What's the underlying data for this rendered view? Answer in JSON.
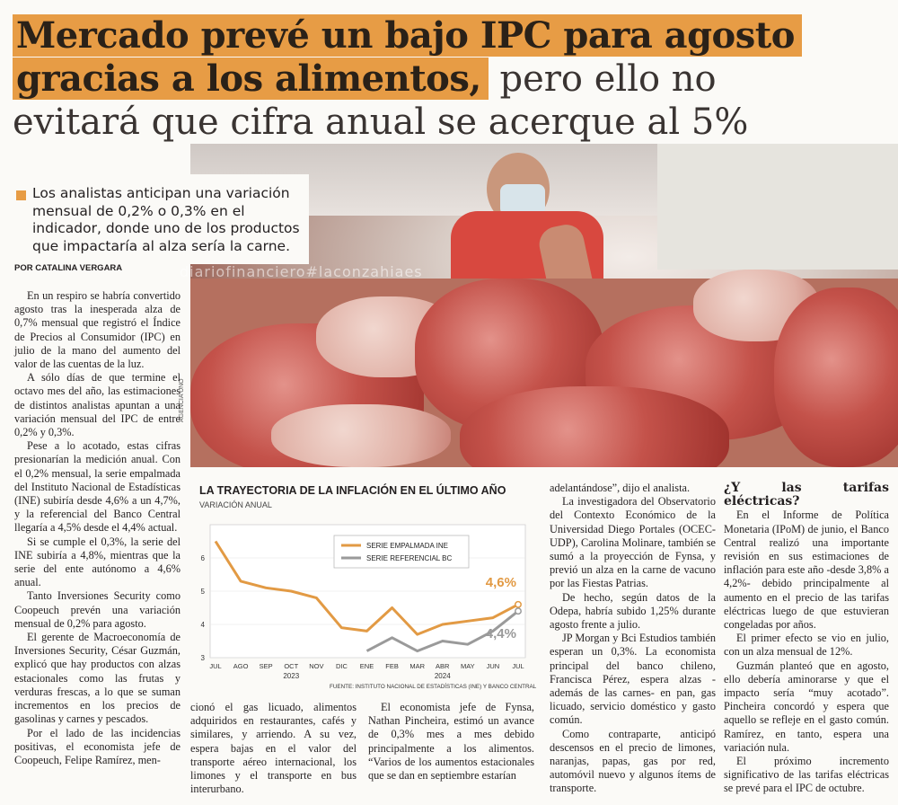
{
  "headline": {
    "line1": "Mercado prevé un bajo IPC para agosto",
    "line2_highlight": "gracias a los alimentos,",
    "line2_rest": " pero ello no",
    "line3": "evitará que cifra anual se acerque al 5%"
  },
  "lead": "Los analistas anticipan una variación mensual de 0,2% o 0,3% en el indicador, donde uno de los productos que impactaría al alza sería la carne.",
  "byline": "POR CATALINA VERGARA",
  "watermark": "diariofinanciero#laconzahiaes",
  "photo_credit": "AGENCIA UNO",
  "col1": [
    "En un respiro se habría convertido agosto tras la inesperada alza de 0,7% mensual que registró el Índice de Precios al Consumidor (IPC) en julio de la mano del aumento del valor de las cuentas de la luz.",
    "A sólo días de que termine el octavo mes del año, las estimaciones de distintos analistas apuntan a una variación mensual del IPC de entre 0,2% y 0,3%.",
    "Pese a lo acotado, estas cifras presionarían la medición anual. Con el 0,2% mensual, la serie empalmada del Instituto Nacional de Estadísticas (INE) subiría desde 4,6% a un 4,7%, y la referencial del Banco Central llegaría a 4,5% desde el 4,4% actual.",
    "Si se cumple el 0,3%, la serie del INE subiría a 4,8%, mientras que la serie del ente autónomo a 4,6% anual.",
    "Tanto Inversiones Security como Coopeuch prevén una variación mensual de 0,2% para agosto.",
    "El gerente de Macroeconomía de Inversiones Security, César Guzmán, explicó que hay productos con alzas estacionales como las frutas y verduras frescas, a lo que se suman incrementos en los precios de gasolinas y carnes y pescados.",
    "Por el lado de las incidencias positivas, el economista jefe de Coopeuch, Felipe Ramírez, men-"
  ],
  "col2": [
    "cionó el gas licuado, alimentos adquiridos en restaurantes, cafés y similares, y arriendo. A su vez, espera bajas en el valor del transporte aéreo internacional, los limones y el transporte en bus interurbano."
  ],
  "col3a": [
    "El economista jefe de Fynsa, Nathan Pincheira, estimó un avance de 0,3% mes a mes debido principalmente a los alimentos. “Varios de los aumentos estacionales que se dan en septiembre estarían"
  ],
  "col4": [
    "adelantándose”, dijo el analista.",
    "La investigadora del Observatorio del Contexto Económico de la Universidad Diego Portales (OCEC-UDP), Carolina Molinare, también se sumó a la proyección de Fynsa, y previó un alza en la carne de vacuno por las Fiestas Patrias.",
    "De hecho, según datos de la Odepa, habría subido 1,25% durante agosto frente a julio.",
    "JP Morgan y Bci Estudios también esperan un 0,3%. La economista principal del banco chileno, Francisca Pérez, espera alzas -además de las carnes- en pan, gas licuado, servicio doméstico y gasto común.",
    "Como contraparte, anticipó descensos en el precio de limones, naranjas, papas, gas por red, automóvil nuevo y algunos ítems de transporte."
  ],
  "col5": {
    "subhead": "¿Y las tarifas eléctricas?",
    "paras": [
      "En el Informe de Política Monetaria (IPoM) de junio, el Banco Central realizó una importante revisión en sus estimaciones de inflación para este año -desde 3,8% a 4,2%- debido principalmente al aumento en el precio de las tarifas eléctricas luego de que estuvieran congeladas por años.",
      "El primer efecto se vio en julio, con un alza mensual de 12%.",
      "Guzmán planteó que en agosto, ello debería aminorarse y que el impacto sería “muy acotado”. Pincheira concordó y espera que aquello se refleje en el gasto común. Ramírez, en tanto, espera una variación nula.",
      "El próximo incremento significativo de las tarifas eléctricas se prevé para el IPC de octubre."
    ]
  },
  "chart_data": {
    "type": "line",
    "title": "LA TRAYECTORIA DE LA INFLACIÓN EN EL ÚLTIMO AÑO",
    "subtitle": "VARIACIÓN ANUAL",
    "categories": [
      "JUL",
      "AGO",
      "SEP",
      "OCT",
      "NOV",
      "DIC",
      "ENE",
      "FEB",
      "MAR",
      "ABR",
      "MAY",
      "JUN",
      "JUL"
    ],
    "year_labels": [
      "2023",
      "2024"
    ],
    "ylim": [
      3,
      7
    ],
    "yticks": [
      3,
      4,
      5,
      6
    ],
    "series": [
      {
        "name": "SERIE EMPALMADA INE",
        "color": "#e29a44",
        "values": [
          6.5,
          5.3,
          5.1,
          5.0,
          4.8,
          3.9,
          3.8,
          4.5,
          3.7,
          4.0,
          4.1,
          4.2,
          4.6
        ]
      },
      {
        "name": "SERIE REFERENCIAL BC",
        "color": "#9a9a9a",
        "values": [
          null,
          null,
          null,
          null,
          null,
          null,
          3.2,
          3.6,
          3.2,
          3.5,
          3.4,
          3.8,
          4.4
        ]
      }
    ],
    "end_labels": [
      "4,6%",
      "4,4%"
    ],
    "source": "FUENTE: INSTITUTO NACIONAL DE ESTADÍSTICAS (INE) Y BANCO CENTRAL"
  }
}
